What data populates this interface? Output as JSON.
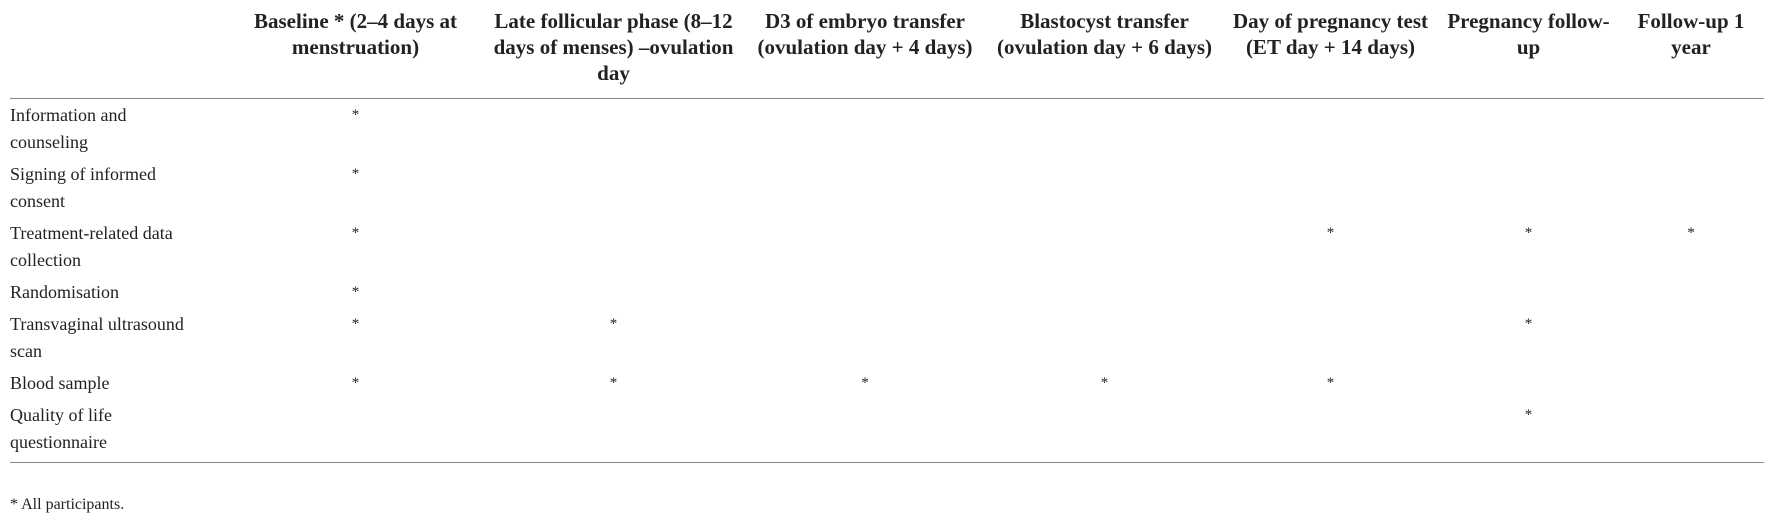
{
  "table": {
    "columns": [
      "Baseline * (2–4 days at menstruation)",
      "Late follicular phase (8–12 days of menses) –ovulation day",
      "D3 of embryo transfer (ovulation day + 4 days)",
      "Blastocyst transfer (ovulation day + 6 days)",
      "Day of pregnancy test (ET day + 14 days)",
      "Pregnancy follow-up",
      "Follow-up 1 year"
    ],
    "rows": [
      {
        "label": "Information and counseling",
        "cells": [
          "*",
          null,
          null,
          null,
          null,
          null,
          null
        ]
      },
      {
        "label": "Signing of informed consent",
        "cells": [
          "*",
          null,
          null,
          null,
          null,
          null,
          null
        ]
      },
      {
        "label": "Treatment-related data collection",
        "cells": [
          "*",
          null,
          null,
          null,
          "*",
          "*",
          "*"
        ]
      },
      {
        "label": "Randomisation",
        "cells": [
          "*",
          null,
          null,
          null,
          null,
          null,
          null
        ]
      },
      {
        "label": "Transvaginal ultrasound scan",
        "cells": [
          "*",
          "*",
          null,
          null,
          null,
          "*",
          null
        ]
      },
      {
        "label": "Blood sample",
        "cells": [
          "*",
          "*",
          "*",
          "*",
          "*",
          null,
          null
        ]
      },
      {
        "label": "Quality of life questionnaire",
        "cells": [
          null,
          null,
          null,
          null,
          null,
          "*",
          null
        ]
      }
    ]
  },
  "footnote": "* All participants."
}
